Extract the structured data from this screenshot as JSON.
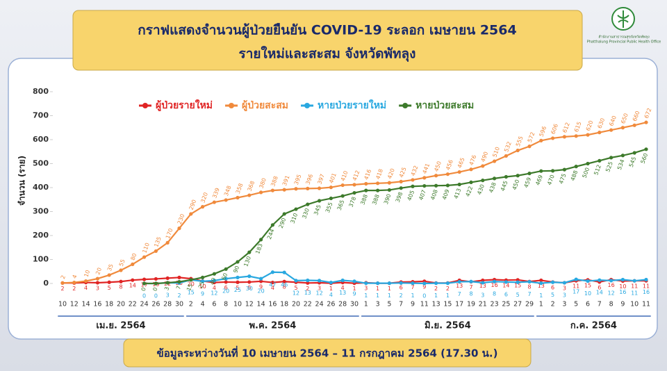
{
  "logo": {
    "name_th": "สำนักงานสาธารณสุขจังหวัดพัทลุง",
    "name_en": "Phatthalung Provincial Public Health Office"
  },
  "chart_data": {
    "type": "line",
    "title": "กราฟแสดงจำนวนผู้ป่วยยืนยัน COVID-19 ระลอก เมษายน 2564",
    "subtitle": "รายใหม่และสะสม จังหวัดพัทลุง",
    "y_label": "จำนวน (ราย)",
    "note": "ข้อมูลระหว่างวันที่ 10 เมษายน 2564 – 11 กรกฎาคม 2564 (17.30 น.)",
    "months": [
      "เม.ย. 2564",
      "พ.ค. 2564",
      "มิ.ย. 2564",
      "ก.ค. 2564"
    ],
    "categories": [
      "10",
      "12",
      "14",
      "16",
      "18",
      "20",
      "22",
      "24",
      "26",
      "28",
      "30",
      "2",
      "4",
      "6",
      "8",
      "10",
      "12",
      "14",
      "16",
      "18",
      "20",
      "22",
      "24",
      "26",
      "28",
      "30",
      "1",
      "3",
      "5",
      "7",
      "9",
      "11",
      "13",
      "15",
      "17",
      "19",
      "21",
      "23",
      "25",
      "27",
      "29",
      "1",
      "2",
      "3",
      "5",
      "6",
      "7",
      "8",
      "9",
      "10",
      "11"
    ],
    "series": [
      {
        "name": "ผู้ป่วยรายใหม่",
        "color": "#e02424",
        "values": [
          2,
          2,
          4,
          3,
          5,
          8,
          14,
          17,
          19,
          22,
          25,
          20,
          10,
          4,
          6,
          5,
          6,
          9,
          4,
          8,
          5,
          2,
          3,
          1,
          4,
          1,
          3,
          1,
          1,
          6,
          7,
          9,
          2,
          2,
          13,
          7,
          13,
          16,
          14,
          15,
          8,
          13,
          6,
          3,
          11,
          15,
          6,
          16,
          10,
          11,
          11
        ]
      },
      {
        "name": "ผู้ป่วยสะสม",
        "color": "#f08a3c",
        "values": [
          2,
          4,
          10,
          20,
          35,
          55,
          80,
          110,
          135,
          170,
          230,
          290,
          320,
          339,
          348,
          358,
          368,
          380,
          388,
          391,
          395,
          396,
          397,
          401,
          410,
          412,
          416,
          418,
          420,
          425,
          432,
          441,
          450,
          456,
          465,
          476,
          490,
          510,
          532,
          555,
          572,
          596,
          606,
          612,
          615,
          620,
          630,
          640,
          650,
          660,
          672
        ]
      },
      {
        "name": "หายป่วยรายใหม่",
        "color": "#29a8e0",
        "values": [
          null,
          null,
          null,
          null,
          null,
          null,
          null,
          0,
          0,
          3,
          2,
          15,
          9,
          12,
          20,
          25,
          30,
          20,
          47,
          46,
          12,
          13,
          12,
          4,
          13,
          9,
          1,
          1,
          1,
          2,
          1,
          0,
          1,
          1,
          7,
          8,
          3,
          8,
          6,
          5,
          7,
          1,
          5,
          3,
          17,
          10,
          14,
          12,
          16,
          11,
          16
        ]
      },
      {
        "name": "หายป่วยสะสม",
        "color": "#3d7a2b",
        "values": [
          null,
          null,
          null,
          null,
          null,
          null,
          null,
          0,
          0,
          3,
          7,
          15,
          25,
          40,
          60,
          90,
          130,
          183,
          244,
          290,
          310,
          330,
          345,
          355,
          365,
          378,
          388,
          388,
          390,
          398,
          405,
          407,
          408,
          409,
          413,
          422,
          430,
          438,
          445,
          450,
          459,
          469,
          470,
          475,
          488,
          500,
          512,
          525,
          534,
          545,
          560
        ]
      }
    ],
    "ylim": [
      0,
      800
    ],
    "yticks": [
      0,
      100,
      200,
      300,
      400,
      500,
      600,
      700,
      800
    ],
    "grid": false,
    "legend": "top"
  }
}
